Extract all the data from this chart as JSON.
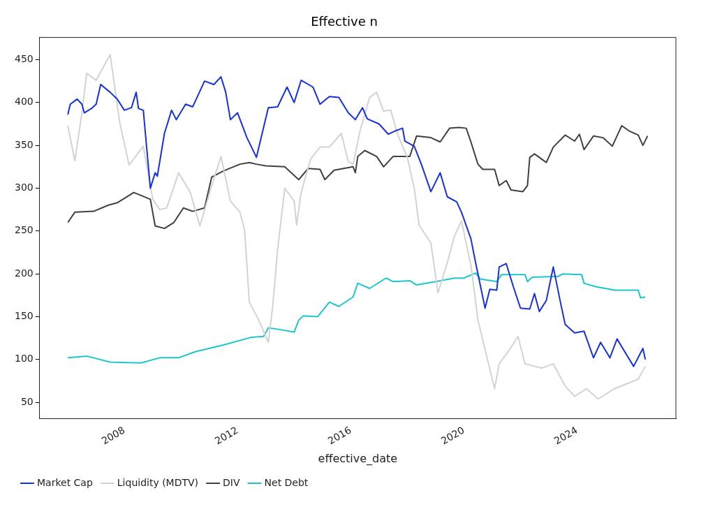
{
  "chart_data": {
    "type": "line",
    "title": "Effective n",
    "xlabel": "effective_date",
    "xlim": [
      "2005-01",
      "2027-07"
    ],
    "xticks": [
      "2008",
      "2012",
      "2016",
      "2020",
      "2024"
    ],
    "ylim": [
      31,
      476
    ],
    "yticks": [
      50,
      100,
      150,
      200,
      250,
      300,
      350,
      400,
      450
    ],
    "grid": false,
    "legend": "bottom left",
    "marker": "none",
    "line_style": "solid",
    "series": [
      {
        "name": "Market Cap",
        "color": "#1530e0",
        "x": [
          "2006-01",
          "2006-02",
          "2006-05",
          "2006-07",
          "2006-08",
          "2006-11",
          "2007-01",
          "2007-03",
          "2007-07",
          "2007-10",
          "2008-01",
          "2008-04",
          "2008-06",
          "2008-07",
          "2008-09",
          "2008-12",
          "2009-02",
          "2009-03",
          "2009-06",
          "2009-09",
          "2009-11",
          "2010-03",
          "2010-06",
          "2010-11",
          "2011-03",
          "2011-06",
          "2011-08",
          "2011-10",
          "2012-01",
          "2012-05",
          "2012-09",
          "2013-02",
          "2013-06",
          "2013-10",
          "2014-01",
          "2014-04",
          "2014-09",
          "2014-12",
          "2015-04",
          "2015-08",
          "2015-12",
          "2016-03",
          "2016-06",
          "2016-08",
          "2017-01",
          "2017-05",
          "2017-08",
          "2017-11",
          "2017-12",
          "2018-04",
          "2018-07",
          "2018-11",
          "2019-03",
          "2019-06",
          "2019-10",
          "2019-12",
          "2020-04",
          "2020-06",
          "2020-10",
          "2020-12",
          "2021-03",
          "2021-04",
          "2021-07",
          "2021-10",
          "2022-01",
          "2022-05",
          "2022-07",
          "2022-09",
          "2022-12",
          "2023-03",
          "2023-06",
          "2023-08",
          "2023-12",
          "2024-04",
          "2024-08",
          "2024-11",
          "2025-03",
          "2025-06",
          "2026-01",
          "2026-05",
          "2026-06"
        ],
        "values": [
          386,
          398,
          404,
          398,
          388,
          393,
          398,
          421,
          412,
          404,
          391,
          394,
          412,
          393,
          391,
          300,
          318,
          314,
          364,
          391,
          380,
          398,
          395,
          425,
          421,
          430,
          412,
          380,
          388,
          359,
          336,
          394,
          395,
          418,
          400,
          426,
          418,
          398,
          407,
          406,
          388,
          380,
          394,
          381,
          375,
          363,
          367,
          370,
          355,
          349,
          328,
          296,
          318,
          290,
          284,
          272,
          241,
          213,
          160,
          182,
          181,
          208,
          212,
          185,
          160,
          159,
          177,
          156,
          169,
          208,
          167,
          141,
          131,
          133,
          102,
          120,
          102,
          124,
          92,
          113,
          100
        ]
      },
      {
        "name": "Liquidity (MDTV)",
        "color": "#d3d3d3",
        "x": [
          "2006-01",
          "2006-04",
          "2006-07",
          "2006-09",
          "2007-01",
          "2007-07",
          "2007-11",
          "2008-03",
          "2008-09",
          "2009-01",
          "2009-04",
          "2009-07",
          "2009-12",
          "2010-05",
          "2010-09",
          "2011-03",
          "2011-06",
          "2011-10",
          "2012-02",
          "2012-04",
          "2012-06",
          "2012-10",
          "2013-02",
          "2013-04",
          "2013-06",
          "2013-09",
          "2014-01",
          "2014-02",
          "2014-04",
          "2014-08",
          "2014-12",
          "2015-04",
          "2015-09",
          "2015-12",
          "2016-02",
          "2016-05",
          "2016-09",
          "2016-12",
          "2017-03",
          "2017-06",
          "2017-09",
          "2018-01",
          "2018-04",
          "2018-06",
          "2018-11",
          "2019-02",
          "2019-06",
          "2019-09",
          "2019-12",
          "2020-04",
          "2020-07",
          "2020-11",
          "2021-02",
          "2021-04",
          "2021-08",
          "2021-12",
          "2022-03",
          "2022-10",
          "2023-03",
          "2023-08",
          "2023-12",
          "2024-05",
          "2024-10",
          "2025-05",
          "2026-03",
          "2026-06"
        ],
        "values": [
          373,
          332,
          388,
          434,
          426,
          456,
          377,
          327,
          349,
          287,
          275,
          277,
          318,
          295,
          256,
          311,
          337,
          285,
          272,
          251,
          167,
          146,
          120,
          164,
          228,
          300,
          285,
          257,
          295,
          334,
          348,
          348,
          364,
          331,
          328,
          367,
          406,
          412,
          390,
          391,
          362,
          336,
          300,
          257,
          236,
          178,
          213,
          244,
          262,
          210,
          146,
          100,
          66,
          95,
          110,
          127,
          95,
          90,
          95,
          69,
          57,
          66,
          54,
          66,
          77,
          92
        ]
      },
      {
        "name": "DIV",
        "color": "#404040",
        "x": [
          "2006-01",
          "2006-04",
          "2006-12",
          "2007-06",
          "2007-10",
          "2008-05",
          "2008-12",
          "2009-02",
          "2009-06",
          "2009-10",
          "2010-02",
          "2010-06",
          "2010-11",
          "2011-02",
          "2011-07",
          "2012-02",
          "2012-06",
          "2012-09",
          "2013-01",
          "2013-09",
          "2014-03",
          "2014-07",
          "2014-12",
          "2015-02",
          "2015-06",
          "2016-02",
          "2016-03",
          "2016-04",
          "2016-07",
          "2016-12",
          "2017-03",
          "2017-07",
          "2018-02",
          "2018-05",
          "2018-11",
          "2019-03",
          "2019-07",
          "2019-11",
          "2020-02",
          "2020-04",
          "2020-07",
          "2020-09",
          "2021-02",
          "2021-04",
          "2021-07",
          "2021-09",
          "2022-02",
          "2022-04",
          "2022-05",
          "2022-07",
          "2022-12",
          "2023-03",
          "2023-08",
          "2023-12",
          "2024-02",
          "2024-04",
          "2024-08",
          "2024-12",
          "2025-04",
          "2025-08",
          "2025-11",
          "2026-03",
          "2026-05",
          "2026-07"
        ],
        "values": [
          260,
          272,
          273,
          280,
          283,
          295,
          287,
          256,
          253,
          260,
          277,
          273,
          277,
          313,
          320,
          328,
          330,
          328,
          326,
          325,
          310,
          323,
          322,
          310,
          321,
          325,
          318,
          337,
          344,
          337,
          325,
          337,
          337,
          361,
          359,
          354,
          370,
          371,
          370,
          354,
          328,
          322,
          322,
          303,
          309,
          298,
          296,
          303,
          336,
          340,
          330,
          348,
          362,
          355,
          363,
          345,
          361,
          359,
          349,
          373,
          367,
          362,
          350,
          361
        ]
      },
      {
        "name": "Net Debt",
        "color": "#1cc7cc",
        "x": [
          "2006-01",
          "2006-09",
          "2007-07",
          "2008-08",
          "2009-04",
          "2009-12",
          "2010-07",
          "2011-07",
          "2012-07",
          "2012-12",
          "2013-02",
          "2013-07",
          "2014-01",
          "2014-03",
          "2014-05",
          "2014-11",
          "2015-04",
          "2015-08",
          "2016-02",
          "2016-04",
          "2016-09",
          "2017-04",
          "2017-07",
          "2018-02",
          "2018-05",
          "2019-01",
          "2019-09",
          "2020-01",
          "2020-06",
          "2020-08",
          "2021-03",
          "2021-05",
          "2022-03",
          "2022-04",
          "2022-06",
          "2023-05",
          "2023-07",
          "2024-03",
          "2024-04",
          "2024-09",
          "2025-05",
          "2026-03",
          "2026-04",
          "2026-06"
        ],
        "values": [
          102,
          104,
          97,
          96,
          102,
          102,
          109,
          117,
          126,
          127,
          137,
          135,
          132,
          146,
          151,
          150,
          167,
          162,
          173,
          189,
          183,
          195,
          191,
          192,
          187,
          191,
          195,
          195,
          201,
          194,
          191,
          199,
          199,
          191,
          196,
          197,
          200,
          199,
          189,
          185,
          181,
          181,
          172,
          173
        ]
      }
    ]
  }
}
